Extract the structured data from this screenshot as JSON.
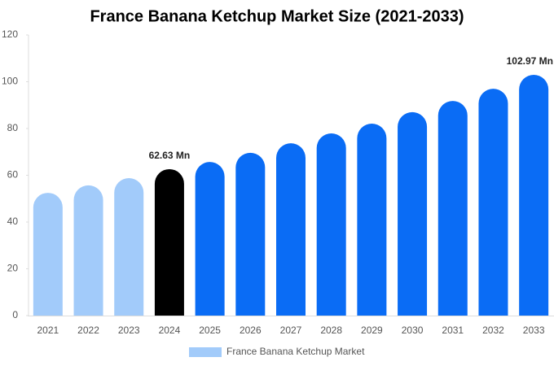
{
  "chart_data": {
    "type": "bar",
    "title": "France Banana Ketchup Market Size (2021-2033)",
    "categories": [
      "2021",
      "2022",
      "2023",
      "2024",
      "2025",
      "2026",
      "2027",
      "2028",
      "2029",
      "2030",
      "2031",
      "2032",
      "2033"
    ],
    "series": [
      {
        "name": "France Banana Ketchup Market",
        "color": "#a2cbfa",
        "colors": [
          "#a2cbfa",
          "#a2cbfa",
          "#a2cbfa",
          "#000000",
          "#0a6cf5",
          "#0a6cf5",
          "#0a6cf5",
          "#0a6cf5",
          "#0a6cf5",
          "#0a6cf5",
          "#0a6cf5",
          "#0a6cf5",
          "#0a6cf5"
        ],
        "values": [
          52.5,
          55.7,
          58.8,
          62.63,
          65.7,
          69.6,
          73.7,
          77.9,
          82.1,
          87.0,
          91.8,
          97.0,
          102.97
        ],
        "value_labels": [
          null,
          null,
          null,
          "62.63 Mn",
          null,
          null,
          null,
          null,
          null,
          null,
          null,
          null,
          "102.97 Mn"
        ]
      }
    ],
    "ylim": [
      0,
      120
    ],
    "yticks": [
      0,
      20,
      40,
      60,
      80,
      100,
      120
    ],
    "grid": false,
    "legend": "bottom"
  }
}
